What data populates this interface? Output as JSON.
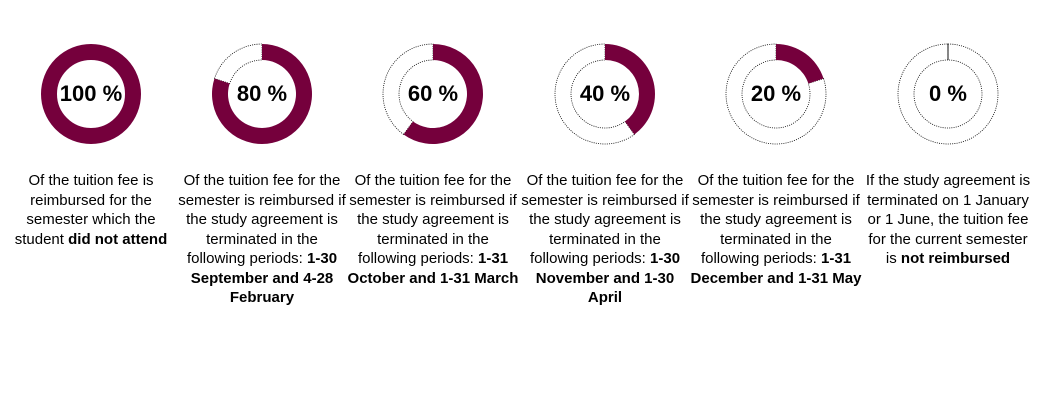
{
  "accent_color": "#75003c",
  "items": [
    {
      "percent_label": "100 %",
      "percent_value": 100,
      "text_before": "Of the tuition fee is reimbursed for the semester which the student ",
      "text_bold": "did not attend"
    },
    {
      "percent_label": "80 %",
      "percent_value": 80,
      "text_before": "Of the tuition fee for the semester is reimbursed if the study agreement is terminated in the following periods: ",
      "text_bold": "1-30 September and 4-28 February"
    },
    {
      "percent_label": "60 %",
      "percent_value": 60,
      "text_before": "Of the tuition fee for the semester is reimbursed if the study agreement is terminated in the following periods: ",
      "text_bold": "1-31 October and 1-31 March"
    },
    {
      "percent_label": "40 %",
      "percent_value": 40,
      "text_before": "Of the tuition fee for the semester is reimbursed if the study agreement is terminated in the following periods: ",
      "text_bold": "1-30 November and 1-30 April"
    },
    {
      "percent_label": "20 %",
      "percent_value": 20,
      "text_before": "Of the tuition fee for the semester is reimbursed if the study agreement is terminated in the following periods: ",
      "text_bold": "1-31 December and 1-31 May"
    },
    {
      "percent_label": "0 %",
      "percent_value": 0,
      "text_before": "If the study agreement is terminated on 1 January or 1 June, the tuition fee for the current semester is ",
      "text_bold": "not reimbursed"
    }
  ]
}
